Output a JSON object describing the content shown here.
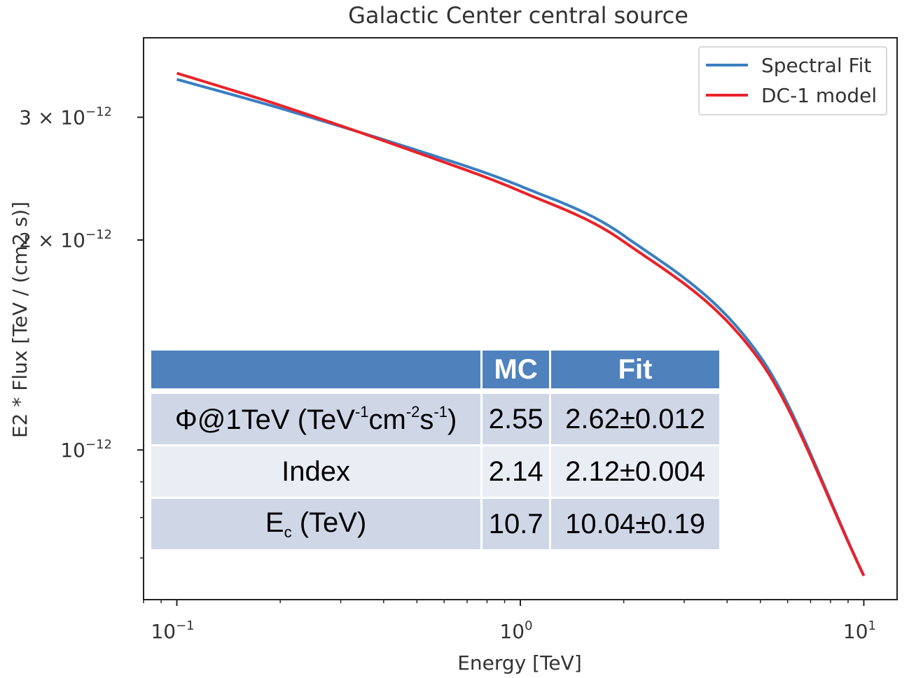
{
  "chart_data": {
    "type": "line",
    "title": "Galactic Center central source",
    "xlabel": "Energy [TeV]",
    "ylabel": "E2 * Flux [TeV / (cm2 s)]",
    "xscale": "log",
    "yscale": "log",
    "xlim": [
      0.08,
      12.5
    ],
    "ylim": [
      6.1e-13,
      3.9e-12
    ],
    "x_ticks": [
      {
        "value": 0.1,
        "base": "10",
        "exp": "−1"
      },
      {
        "value": 1,
        "base": "10",
        "exp": "0"
      },
      {
        "value": 10,
        "base": "10",
        "exp": "1"
      }
    ],
    "y_ticks": [
      {
        "value": 3e-12,
        "mant": "3 × 10",
        "exp": "−12"
      },
      {
        "value": 2e-12,
        "mant": "2 × 10",
        "exp": "−12"
      },
      {
        "value": 1e-12,
        "mant": "10",
        "exp": "−12"
      }
    ],
    "legend_position": "top-right",
    "series": [
      {
        "name": "Spectral Fit",
        "color": "#3a7fc1",
        "model": "exponential cutoff power law",
        "x": [
          0.1,
          0.2,
          0.5,
          1,
          2,
          5,
          10
        ],
        "y": [
          3.4e-12,
          3.09e-12,
          2.69e-12,
          2.39e-12,
          2.03e-12,
          1.36e-12,
          6.6e-13
        ]
      },
      {
        "name": "DC-1 model",
        "color": "#e8232a",
        "model": "exponential cutoff power law",
        "x": [
          0.1,
          0.2,
          0.5,
          1,
          2,
          5,
          10
        ],
        "y": [
          3.47e-12,
          3.12e-12,
          2.67e-12,
          2.35e-12,
          1.99e-12,
          1.34e-12,
          6.6e-13
        ]
      }
    ]
  },
  "table": {
    "headers": [
      "",
      "MC",
      "Fit"
    ],
    "rows": [
      {
        "label_main": "Φ@1TeV (TeV",
        "sup1": "-1",
        "mid1": "cm",
        "sup2": "-2",
        "mid2": "s",
        "sup3": "-1",
        "label_end": ")",
        "mc": "2.55",
        "fit": "2.62±0.012"
      },
      {
        "label": "Index",
        "mc": "2.14",
        "fit": "2.12±0.004"
      },
      {
        "label_main": "E",
        "sub": "c",
        "label_end": " (TeV)",
        "mc": "10.7",
        "fit": "10.04±0.19"
      }
    ]
  }
}
